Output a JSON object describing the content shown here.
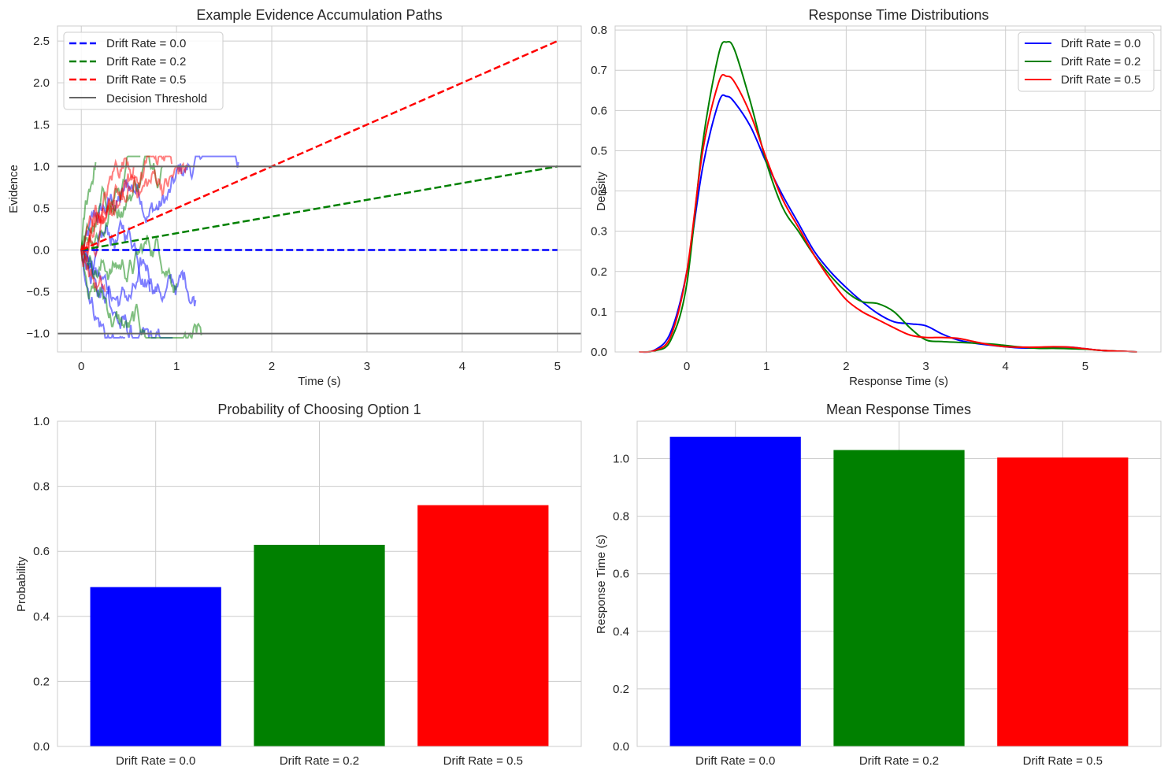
{
  "colors": {
    "c0": "#0000ff",
    "c1": "#008000",
    "c2": "#ff0000",
    "threshold": "#666666",
    "grid": "#cccccc"
  },
  "chart_data": [
    {
      "type": "line",
      "title": "Example Evidence Accumulation Paths",
      "xlabel": "Time (s)",
      "ylabel": "Evidence",
      "xlim": [
        -0.25,
        5.25
      ],
      "ylim": [
        -1.22,
        2.68
      ],
      "xticks": [
        0,
        1,
        2,
        3,
        4,
        5
      ],
      "xtick_labels": [
        "0",
        "1",
        "2",
        "3",
        "4",
        "5"
      ],
      "yticks": [
        -1.0,
        -0.5,
        0.0,
        0.5,
        1.0,
        1.5,
        2.0,
        2.5
      ],
      "ytick_labels": [
        "−1.0",
        "−0.5",
        "0.0",
        "0.5",
        "1.0",
        "1.5",
        "2.0",
        "2.5"
      ],
      "grid": true,
      "legend_position": "top-left",
      "series": [
        {
          "name": "Drift Rate = 0.0",
          "style": "dashed",
          "x": [
            0,
            5
          ],
          "y": [
            0.0,
            0.0
          ]
        },
        {
          "name": "Drift Rate = 0.2",
          "style": "dashed",
          "x": [
            0,
            5
          ],
          "y": [
            0.0,
            1.0
          ]
        },
        {
          "name": "Drift Rate = 0.5",
          "style": "dashed",
          "x": [
            0,
            5
          ],
          "y": [
            0.0,
            2.5
          ]
        },
        {
          "name": "Decision Threshold",
          "style": "solid",
          "y_values": [
            1.0,
            -1.0
          ]
        }
      ],
      "sample_paths": [
        {
          "color": "c0",
          "end_time": 1.65,
          "end_value": 1.05
        },
        {
          "color": "c0",
          "end_time": 0.96,
          "end_value": -1.05
        },
        {
          "color": "c0",
          "end_time": 0.46,
          "end_value": -1.05
        },
        {
          "color": "c0",
          "end_time": 0.72,
          "end_value": -0.5
        },
        {
          "color": "c0",
          "end_time": 1.2,
          "end_value": -0.6
        },
        {
          "color": "c1",
          "end_time": 1.26,
          "end_value": -1.02
        },
        {
          "color": "c1",
          "end_time": 0.15,
          "end_value": 1.05
        },
        {
          "color": "c1",
          "end_time": 0.62,
          "end_value": 1.12
        },
        {
          "color": "c1",
          "end_time": 0.85,
          "end_value": 1.0
        },
        {
          "color": "c1",
          "end_time": 1.0,
          "end_value": -0.4
        },
        {
          "color": "c2",
          "end_time": 1.11,
          "end_value": 1.02
        },
        {
          "color": "c2",
          "end_time": 0.55,
          "end_value": 1.0
        },
        {
          "color": "c2",
          "end_time": 0.95,
          "end_value": 1.03
        },
        {
          "color": "c2",
          "end_time": 0.35,
          "end_value": 0.6
        },
        {
          "color": "c2",
          "end_time": 0.25,
          "end_value": -0.5
        }
      ]
    },
    {
      "type": "line",
      "title": "Response Time Distributions",
      "xlabel": "Response Time (s)",
      "ylabel": "Density",
      "xlim": [
        -0.9,
        5.95
      ],
      "ylim": [
        0,
        0.81
      ],
      "xticks": [
        0,
        1,
        2,
        3,
        4,
        5
      ],
      "xtick_labels": [
        "0",
        "1",
        "2",
        "3",
        "4",
        "5"
      ],
      "yticks": [
        0.0,
        0.1,
        0.2,
        0.3,
        0.4,
        0.5,
        0.6,
        0.7,
        0.8
      ],
      "ytick_labels": [
        "0.0",
        "0.1",
        "0.2",
        "0.3",
        "0.4",
        "0.5",
        "0.6",
        "0.7",
        "0.8"
      ],
      "grid": true,
      "legend_position": "top-right",
      "x": [
        -0.6,
        -0.4,
        -0.2,
        0.0,
        0.2,
        0.4,
        0.5,
        0.6,
        0.8,
        1.0,
        1.2,
        1.4,
        1.6,
        1.8,
        2.0,
        2.2,
        2.4,
        2.6,
        2.8,
        3.0,
        3.2,
        3.4,
        3.6,
        3.8,
        4.0,
        4.2,
        4.4,
        4.6,
        4.8,
        5.0,
        5.2,
        5.4,
        5.65
      ],
      "series": [
        {
          "name": "Drift Rate = 0.0",
          "color": "c0",
          "values": [
            0.0,
            0.005,
            0.05,
            0.2,
            0.46,
            0.62,
            0.635,
            0.62,
            0.56,
            0.47,
            0.39,
            0.32,
            0.25,
            0.2,
            0.16,
            0.125,
            0.095,
            0.075,
            0.07,
            0.065,
            0.045,
            0.03,
            0.022,
            0.017,
            0.013,
            0.01,
            0.01,
            0.012,
            0.012,
            0.008,
            0.004,
            0.002,
            0.0
          ]
        },
        {
          "name": "Drift Rate = 0.2",
          "color": "c1",
          "values": [
            0.0,
            0.003,
            0.03,
            0.17,
            0.52,
            0.74,
            0.77,
            0.75,
            0.62,
            0.47,
            0.36,
            0.3,
            0.24,
            0.19,
            0.15,
            0.125,
            0.12,
            0.1,
            0.06,
            0.03,
            0.026,
            0.024,
            0.022,
            0.02,
            0.016,
            0.012,
            0.009,
            0.009,
            0.008,
            0.007,
            0.004,
            0.002,
            0.0
          ]
        },
        {
          "name": "Drift Rate = 0.5",
          "color": "c2",
          "values": [
            0.0,
            0.004,
            0.04,
            0.2,
            0.5,
            0.67,
            0.685,
            0.67,
            0.59,
            0.48,
            0.38,
            0.31,
            0.24,
            0.18,
            0.13,
            0.1,
            0.08,
            0.06,
            0.042,
            0.036,
            0.036,
            0.034,
            0.026,
            0.018,
            0.013,
            0.012,
            0.012,
            0.013,
            0.012,
            0.008,
            0.004,
            0.002,
            0.0
          ]
        }
      ]
    },
    {
      "type": "bar",
      "title": "Probability of Choosing Option 1",
      "xlabel": "",
      "ylabel": "Probability",
      "ylim": [
        0,
        1.0
      ],
      "yticks": [
        0.0,
        0.2,
        0.4,
        0.6,
        0.8,
        1.0
      ],
      "ytick_labels": [
        "0.0",
        "0.2",
        "0.4",
        "0.6",
        "0.8",
        "1.0"
      ],
      "grid": true,
      "categories": [
        "Drift Rate = 0.0",
        "Drift Rate = 0.2",
        "Drift Rate = 0.5"
      ],
      "bar_colors": [
        "c0",
        "c1",
        "c2"
      ],
      "values": [
        0.49,
        0.62,
        0.742
      ]
    },
    {
      "type": "bar",
      "title": "Mean Response Times",
      "xlabel": "",
      "ylabel": "Response Time (s)",
      "ylim": [
        0,
        1.13
      ],
      "yticks": [
        0.0,
        0.2,
        0.4,
        0.6,
        0.8,
        1.0
      ],
      "ytick_labels": [
        "0.0",
        "0.2",
        "0.4",
        "0.6",
        "0.8",
        "1.0"
      ],
      "grid": true,
      "categories": [
        "Drift Rate = 0.0",
        "Drift Rate = 0.2",
        "Drift Rate = 0.5"
      ],
      "bar_colors": [
        "c0",
        "c1",
        "c2"
      ],
      "values": [
        1.076,
        1.03,
        1.004
      ]
    }
  ]
}
